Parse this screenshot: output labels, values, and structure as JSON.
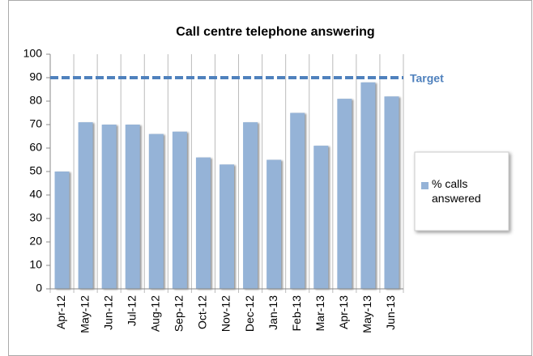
{
  "chart_data": {
    "type": "bar",
    "title": "Call centre telephone answering",
    "categories": [
      "Apr-12",
      "May-12",
      "Jun-12",
      "Jul-12",
      "Aug-12",
      "Sep-12",
      "Oct-12",
      "Nov-12",
      "Dec-12",
      "Jan-13",
      "Feb-13",
      "Mar-13",
      "Apr-13",
      "May-13",
      "Jun-13"
    ],
    "series": [
      {
        "name": "% calls answered",
        "color": "#95b3d7",
        "values": [
          50,
          71,
          70,
          70,
          66,
          67,
          56,
          53,
          71,
          55,
          75,
          61,
          81,
          88,
          82
        ]
      }
    ],
    "target": {
      "label": "Target",
      "value": 90,
      "color": "#4f81bd"
    },
    "ylim": [
      0,
      100
    ],
    "yticks": [
      0,
      10,
      20,
      30,
      40,
      50,
      60,
      70,
      80,
      90,
      100
    ],
    "xgrid": true,
    "legend": "right"
  }
}
